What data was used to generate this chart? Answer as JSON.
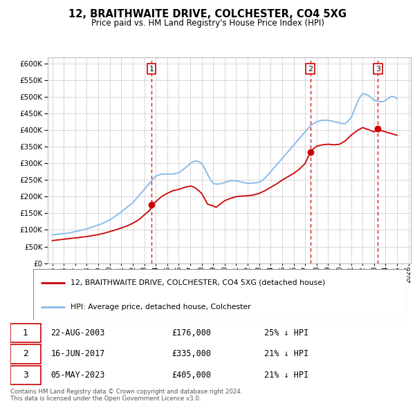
{
  "title": "12, BRAITHWAITE DRIVE, COLCHESTER, CO4 5XG",
  "subtitle": "Price paid vs. HM Land Registry's House Price Index (HPI)",
  "ylim": [
    0,
    620000
  ],
  "yticks": [
    0,
    50000,
    100000,
    150000,
    200000,
    250000,
    300000,
    350000,
    400000,
    450000,
    500000,
    550000,
    600000
  ],
  "background_color": "#ffffff",
  "grid_color": "#d0d0d0",
  "hpi_color": "#88bbee",
  "price_color": "#cc0000",
  "legend_labels": [
    "12, BRAITHWAITE DRIVE, COLCHESTER, CO4 5XG (detached house)",
    "HPI: Average price, detached house, Colchester"
  ],
  "transactions": [
    {
      "num": 1,
      "date": "22-AUG-2003",
      "price": 176000,
      "rel": "25% ↓ HPI"
    },
    {
      "num": 2,
      "date": "16-JUN-2017",
      "price": 335000,
      "rel": "21% ↓ HPI"
    },
    {
      "num": 3,
      "date": "05-MAY-2023",
      "price": 405000,
      "rel": "21% ↓ HPI"
    }
  ],
  "sale_dates_decimal": [
    2003.64,
    2017.46,
    2023.34
  ],
  "sale_prices": [
    176000,
    335000,
    405000
  ],
  "footer": "Contains HM Land Registry data © Crown copyright and database right 2024.\nThis data is licensed under the Open Government Licence v3.0.",
  "hpi_x": [
    1995.0,
    1995.25,
    1995.5,
    1995.75,
    1996.0,
    1996.25,
    1996.5,
    1996.75,
    1997.0,
    1997.25,
    1997.5,
    1997.75,
    1998.0,
    1998.25,
    1998.5,
    1998.75,
    1999.0,
    1999.25,
    1999.5,
    1999.75,
    2000.0,
    2000.25,
    2000.5,
    2000.75,
    2001.0,
    2001.25,
    2001.5,
    2001.75,
    2002.0,
    2002.25,
    2002.5,
    2002.75,
    2003.0,
    2003.25,
    2003.5,
    2003.75,
    2004.0,
    2004.25,
    2004.5,
    2004.75,
    2005.0,
    2005.25,
    2005.5,
    2005.75,
    2006.0,
    2006.25,
    2006.5,
    2006.75,
    2007.0,
    2007.25,
    2007.5,
    2007.75,
    2008.0,
    2008.25,
    2008.5,
    2008.75,
    2009.0,
    2009.25,
    2009.5,
    2009.75,
    2010.0,
    2010.25,
    2010.5,
    2010.75,
    2011.0,
    2011.25,
    2011.5,
    2011.75,
    2012.0,
    2012.25,
    2012.5,
    2012.75,
    2013.0,
    2013.25,
    2013.5,
    2013.75,
    2014.0,
    2014.25,
    2014.5,
    2014.75,
    2015.0,
    2015.25,
    2015.5,
    2015.75,
    2016.0,
    2016.25,
    2016.5,
    2016.75,
    2017.0,
    2017.25,
    2017.5,
    2017.75,
    2018.0,
    2018.25,
    2018.5,
    2018.75,
    2019.0,
    2019.25,
    2019.5,
    2019.75,
    2020.0,
    2020.25,
    2020.5,
    2020.75,
    2021.0,
    2021.25,
    2021.5,
    2021.75,
    2022.0,
    2022.25,
    2022.5,
    2022.75,
    2023.0,
    2023.25,
    2023.5,
    2023.75,
    2024.0,
    2024.25,
    2024.5,
    2024.75,
    2025.0
  ],
  "hpi_y": [
    85000,
    86000,
    87000,
    88000,
    89000,
    90000,
    91000,
    93000,
    95000,
    97000,
    99000,
    101000,
    103000,
    106000,
    109000,
    112000,
    115000,
    118000,
    122000,
    126000,
    130000,
    136000,
    142000,
    148000,
    154000,
    161000,
    168000,
    175000,
    182000,
    192000,
    202000,
    212000,
    222000,
    232000,
    242000,
    252000,
    262000,
    265000,
    268000,
    268000,
    268000,
    268000,
    268000,
    270000,
    272000,
    278000,
    285000,
    292000,
    300000,
    305000,
    308000,
    305000,
    300000,
    285000,
    268000,
    252000,
    240000,
    238000,
    238000,
    240000,
    243000,
    245000,
    248000,
    248000,
    248000,
    246000,
    244000,
    242000,
    240000,
    240000,
    241000,
    242000,
    244000,
    248000,
    256000,
    265000,
    275000,
    285000,
    295000,
    305000,
    315000,
    325000,
    335000,
    345000,
    355000,
    365000,
    375000,
    385000,
    395000,
    405000,
    415000,
    420000,
    425000,
    428000,
    430000,
    430000,
    430000,
    428000,
    426000,
    424000,
    422000,
    420000,
    420000,
    428000,
    438000,
    458000,
    480000,
    498000,
    510000,
    508000,
    505000,
    498000,
    490000,
    488000,
    486000,
    486000,
    490000,
    496000,
    502000,
    500000,
    495000
  ],
  "price_x": [
    1995.0,
    1995.5,
    1996.0,
    1996.5,
    1997.0,
    1997.5,
    1998.0,
    1998.5,
    1999.0,
    1999.5,
    2000.0,
    2000.5,
    2001.0,
    2001.5,
    2002.0,
    2002.5,
    2003.0,
    2003.5,
    2003.64,
    2004.0,
    2004.5,
    2005.0,
    2005.5,
    2006.0,
    2006.5,
    2007.0,
    2007.25,
    2007.5,
    2008.0,
    2008.5,
    2009.0,
    2009.25,
    2009.5,
    2010.0,
    2010.5,
    2011.0,
    2011.5,
    2012.0,
    2012.5,
    2013.0,
    2013.5,
    2014.0,
    2014.5,
    2015.0,
    2015.5,
    2016.0,
    2016.5,
    2017.0,
    2017.46,
    2017.5,
    2018.0,
    2018.5,
    2019.0,
    2019.5,
    2020.0,
    2020.5,
    2021.0,
    2021.5,
    2022.0,
    2022.5,
    2023.0,
    2023.34,
    2023.5,
    2024.0,
    2024.5,
    2025.0
  ],
  "price_y": [
    68000,
    70000,
    72000,
    74000,
    76000,
    78000,
    80000,
    83000,
    86000,
    90000,
    95000,
    100000,
    106000,
    112000,
    120000,
    130000,
    145000,
    160000,
    176000,
    185000,
    200000,
    210000,
    218000,
    222000,
    228000,
    232000,
    230000,
    225000,
    210000,
    178000,
    172000,
    168000,
    175000,
    188000,
    195000,
    200000,
    202000,
    203000,
    205000,
    210000,
    218000,
    228000,
    238000,
    250000,
    260000,
    270000,
    283000,
    300000,
    335000,
    338000,
    352000,
    356000,
    358000,
    356000,
    358000,
    368000,
    385000,
    398000,
    408000,
    402000,
    395000,
    405000,
    400000,
    395000,
    390000,
    385000
  ]
}
